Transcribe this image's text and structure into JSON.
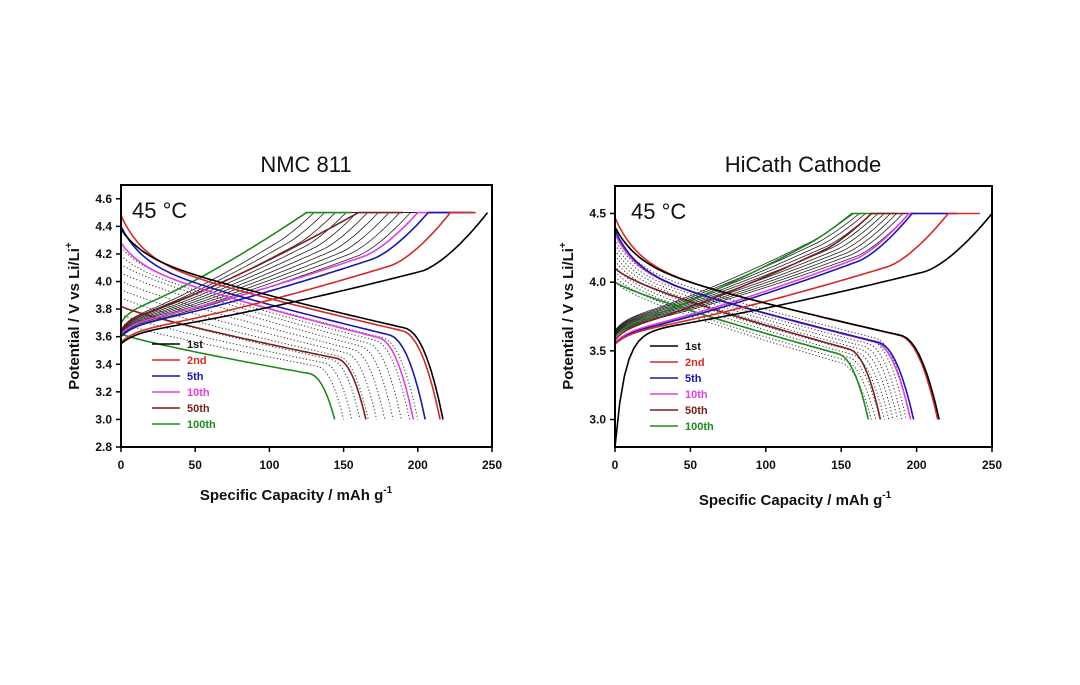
{
  "chart_data": [
    {
      "type": "line",
      "title": "NMC 811",
      "annotation": "45 °C",
      "xlabel": "Specific Capacity / mAh g",
      "xlabel_sup": "-1",
      "ylabel": "Potential / V vs Li/Li",
      "ylabel_sup": "+",
      "xlim": [
        0,
        250
      ],
      "ylim": [
        2.8,
        4.7
      ],
      "xticks": [
        0,
        50,
        100,
        150,
        200,
        250
      ],
      "xtick_labels": [
        "0",
        "50",
        "100",
        "150",
        "200",
        "250"
      ],
      "yticks": [
        2.8,
        3.0,
        3.2,
        3.4,
        3.6,
        3.8,
        4.0,
        4.2,
        4.4,
        4.6
      ],
      "ytick_labels": [
        "2.8",
        "3.0",
        "3.2",
        "3.4",
        "3.6",
        "3.8",
        "4.0",
        "4.2",
        "4.4",
        "4.6"
      ],
      "grid": false,
      "legend_position": "bottom-left",
      "legend": [
        {
          "name": "1st",
          "color": "#000000"
        },
        {
          "name": "2nd",
          "color": "#d42a2a"
        },
        {
          "name": "5th",
          "color": "#1a1aa8"
        },
        {
          "name": "10th",
          "color": "#e040e0"
        },
        {
          "name": "50th",
          "color": "#7a1e1e"
        },
        {
          "name": "100th",
          "color": "#1f8a1f"
        }
      ],
      "series": [
        {
          "name": "1st",
          "color": "#000000",
          "style": "solid",
          "charge_capacity": 247,
          "discharge_capacity": 217,
          "discharge_start_v": 4.38,
          "discharge_plateau_v": 3.6,
          "charge_start_v": 3.55,
          "charge_knee_v": 4.2
        },
        {
          "name": "2nd",
          "color": "#d42a2a",
          "style": "solid",
          "charge_capacity": 222,
          "discharge_capacity": 215,
          "discharge_start_v": 4.48,
          "discharge_plateau_v": 3.58,
          "charge_start_v": 3.56,
          "charge_knee_v": 4.25
        },
        {
          "name": "5th",
          "color": "#1a1aa8",
          "style": "solid",
          "charge_capacity": 207,
          "discharge_capacity": 205,
          "discharge_start_v": 4.4,
          "discharge_plateau_v": 3.55,
          "charge_start_v": 3.6,
          "charge_knee_v": 4.3
        },
        {
          "name": "10th",
          "color": "#e040e0",
          "style": "solid",
          "charge_capacity": 200,
          "discharge_capacity": 197,
          "discharge_start_v": 4.28,
          "discharge_plateau_v": 3.53,
          "charge_start_v": 3.62,
          "charge_knee_v": 4.32
        },
        {
          "name": "50th",
          "color": "#7a1e1e",
          "style": "solid",
          "charge_capacity": 160,
          "discharge_capacity": 165,
          "discharge_start_v": 3.82,
          "discharge_plateau_v": 3.4,
          "charge_start_v": 3.65,
          "charge_knee_v": 4.5
        },
        {
          "name": "100th",
          "color": "#1f8a1f",
          "style": "solid",
          "charge_capacity": 125,
          "discharge_capacity": 144,
          "discharge_start_v": 3.62,
          "discharge_plateau_v": 3.3,
          "charge_start_v": 3.7,
          "charge_knee_v": 4.5
        }
      ],
      "intermediate_cycles": {
        "color": "#333333",
        "style": "dotted",
        "count": 10,
        "discharge_capacity_range": [
          150,
          200
        ],
        "charge_capacity_range": [
          130,
          195
        ]
      }
    },
    {
      "type": "line",
      "title": "HiCath Cathode",
      "annotation": "45 °C",
      "xlabel": "Specific Capacity / mAh g",
      "xlabel_sup": "-1",
      "ylabel": "Potential / V vs Li/Li",
      "ylabel_sup": "+",
      "xlim": [
        0,
        250
      ],
      "ylim": [
        2.8,
        4.7
      ],
      "xticks": [
        0,
        50,
        100,
        150,
        200,
        250
      ],
      "xtick_labels": [
        "0",
        "50",
        "100",
        "150",
        "200",
        "250"
      ],
      "yticks": [
        3.0,
        3.5,
        4.0,
        4.5
      ],
      "ytick_labels": [
        "3.0",
        "3.5",
        "4.0",
        "4.5"
      ],
      "grid": false,
      "legend_position": "bottom-left",
      "legend": [
        {
          "name": "1st",
          "color": "#000000"
        },
        {
          "name": "2nd",
          "color": "#d42a2a"
        },
        {
          "name": "5th",
          "color": "#1a1aa8"
        },
        {
          "name": "10th",
          "color": "#e040e0"
        },
        {
          "name": "50th",
          "color": "#7a1e1e"
        },
        {
          "name": "100th",
          "color": "#1f8a1f"
        }
      ],
      "series": [
        {
          "name": "1st",
          "color": "#000000",
          "style": "solid",
          "charge_capacity": 250,
          "discharge_capacity": 215,
          "discharge_start_v": 4.4,
          "discharge_plateau_v": 3.55,
          "charge_start_v": 2.8,
          "charge_knee_v": 4.2
        },
        {
          "name": "2nd",
          "color": "#d42a2a",
          "style": "solid",
          "charge_capacity": 221,
          "discharge_capacity": 214,
          "discharge_start_v": 4.47,
          "discharge_plateau_v": 3.55,
          "charge_start_v": 3.5,
          "charge_knee_v": 4.25
        },
        {
          "name": "5th",
          "color": "#1a1aa8",
          "style": "solid",
          "charge_capacity": 197,
          "discharge_capacity": 198,
          "discharge_start_v": 4.38,
          "discharge_plateau_v": 3.5,
          "charge_start_v": 3.55,
          "charge_knee_v": 4.3
        },
        {
          "name": "10th",
          "color": "#e040e0",
          "style": "solid",
          "charge_capacity": 195,
          "discharge_capacity": 196,
          "discharge_start_v": 4.35,
          "discharge_plateau_v": 3.5,
          "charge_start_v": 3.56,
          "charge_knee_v": 4.32
        },
        {
          "name": "50th",
          "color": "#7a1e1e",
          "style": "solid",
          "charge_capacity": 170,
          "discharge_capacity": 176,
          "discharge_start_v": 4.1,
          "discharge_plateau_v": 3.45,
          "charge_start_v": 3.58,
          "charge_knee_v": 4.4
        },
        {
          "name": "100th",
          "color": "#1f8a1f",
          "style": "solid",
          "charge_capacity": 157,
          "discharge_capacity": 168,
          "discharge_start_v": 4.0,
          "discharge_plateau_v": 3.42,
          "charge_start_v": 3.6,
          "charge_knee_v": 4.45
        }
      ],
      "intermediate_cycles": {
        "color": "#333333",
        "style": "dotted",
        "count": 10,
        "discharge_capacity_range": [
          170,
          196
        ],
        "charge_capacity_range": [
          158,
          195
        ]
      }
    }
  ]
}
